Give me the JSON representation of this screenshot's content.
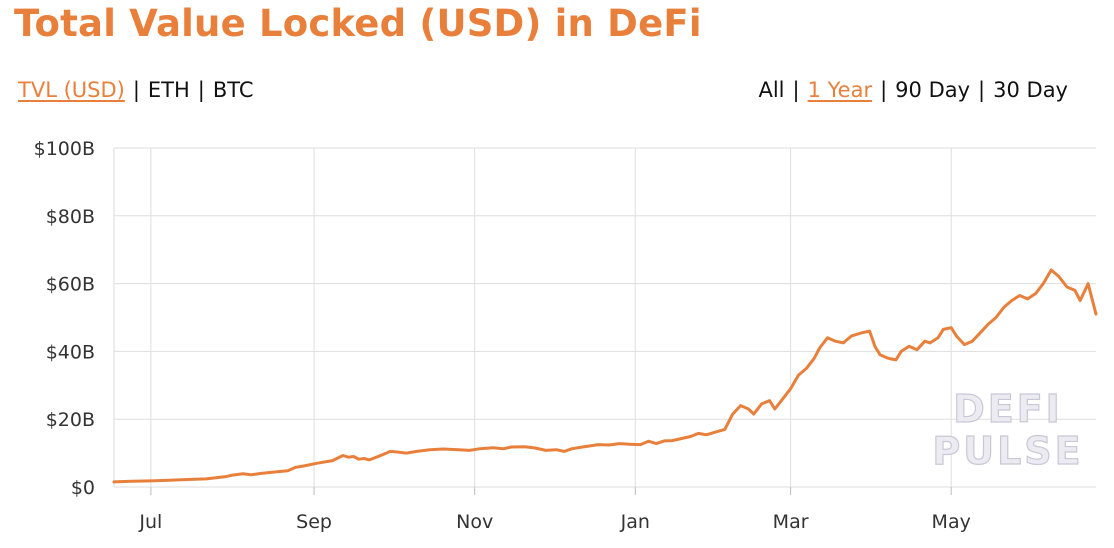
{
  "title": "Total Value Locked (USD) in DeFi",
  "metric_tabs": [
    {
      "label": "TVL (USD)",
      "active": true
    },
    {
      "label": "ETH",
      "active": false
    },
    {
      "label": "BTC",
      "active": false
    }
  ],
  "range_tabs": [
    {
      "label": "All",
      "active": false
    },
    {
      "label": "1 Year",
      "active": true
    },
    {
      "label": "90 Day",
      "active": false
    },
    {
      "label": "30 Day",
      "active": false
    }
  ],
  "separator": "|",
  "watermark": [
    "DEFI",
    "PULSE"
  ],
  "colors": {
    "accent": "#e8803c",
    "grid": "#dedede",
    "text": "#333333"
  },
  "chart_data": {
    "type": "line",
    "title": "Total Value Locked (USD) in DeFi",
    "xlabel": "",
    "ylabel": "",
    "ylim": [
      0,
      100
    ],
    "y_unit": "B USD",
    "y_ticks": [
      0,
      20,
      40,
      60,
      80,
      100
    ],
    "y_tick_labels": [
      "$0",
      "$20B",
      "$40B",
      "$60B",
      "$80B",
      "$100B"
    ],
    "x_domain": [
      "2020-06-17",
      "2021-06-25"
    ],
    "x_ticks": [
      "2020-07-01",
      "2020-09-01",
      "2020-11-01",
      "2021-01-01",
      "2021-03-01",
      "2021-05-01"
    ],
    "x_tick_labels": [
      "Jul",
      "Sep",
      "Nov",
      "Jan",
      "Mar",
      "May"
    ],
    "grid": true,
    "legend": "none",
    "series": [
      {
        "color": "#e8803c",
        "points": [
          [
            "2020-06-17",
            1.5
          ],
          [
            "2020-06-24",
            1.7
          ],
          [
            "2020-07-01",
            1.8
          ],
          [
            "2020-07-08",
            2.0
          ],
          [
            "2020-07-15",
            2.2
          ],
          [
            "2020-07-22",
            2.4
          ],
          [
            "2020-07-29",
            3.0
          ],
          [
            "2020-08-01",
            3.5
          ],
          [
            "2020-08-05",
            3.9
          ],
          [
            "2020-08-08",
            3.6
          ],
          [
            "2020-08-12",
            4.0
          ],
          [
            "2020-08-18",
            4.5
          ],
          [
            "2020-08-22",
            4.8
          ],
          [
            "2020-08-25",
            5.8
          ],
          [
            "2020-08-28",
            6.2
          ],
          [
            "2020-09-02",
            7.0
          ],
          [
            "2020-09-08",
            7.8
          ],
          [
            "2020-09-12",
            9.3
          ],
          [
            "2020-09-14",
            8.8
          ],
          [
            "2020-09-16",
            9.0
          ],
          [
            "2020-09-18",
            8.2
          ],
          [
            "2020-09-20",
            8.4
          ],
          [
            "2020-09-22",
            8.0
          ],
          [
            "2020-09-26",
            9.2
          ],
          [
            "2020-09-30",
            10.5
          ],
          [
            "2020-10-03",
            10.3
          ],
          [
            "2020-10-06",
            10.0
          ],
          [
            "2020-10-10",
            10.5
          ],
          [
            "2020-10-15",
            11.0
          ],
          [
            "2020-10-20",
            11.2
          ],
          [
            "2020-10-26",
            11.0
          ],
          [
            "2020-10-30",
            10.8
          ],
          [
            "2020-11-03",
            11.3
          ],
          [
            "2020-11-08",
            11.6
          ],
          [
            "2020-11-12",
            11.3
          ],
          [
            "2020-11-15",
            11.8
          ],
          [
            "2020-11-20",
            11.9
          ],
          [
            "2020-11-24",
            11.5
          ],
          [
            "2020-11-28",
            10.8
          ],
          [
            "2020-12-02",
            11.0
          ],
          [
            "2020-12-05",
            10.5
          ],
          [
            "2020-12-08",
            11.3
          ],
          [
            "2020-12-12",
            11.8
          ],
          [
            "2020-12-18",
            12.5
          ],
          [
            "2020-12-22",
            12.4
          ],
          [
            "2020-12-26",
            12.8
          ],
          [
            "2020-12-30",
            12.6
          ],
          [
            "2021-01-03",
            12.5
          ],
          [
            "2021-01-06",
            13.5
          ],
          [
            "2021-01-09",
            12.8
          ],
          [
            "2021-01-12",
            13.6
          ],
          [
            "2021-01-15",
            13.7
          ],
          [
            "2021-01-18",
            14.2
          ],
          [
            "2021-01-22",
            14.9
          ],
          [
            "2021-01-25",
            15.8
          ],
          [
            "2021-01-28",
            15.4
          ],
          [
            "2021-02-01",
            16.3
          ],
          [
            "2021-02-04",
            17.0
          ],
          [
            "2021-02-07",
            21.5
          ],
          [
            "2021-02-10",
            24.0
          ],
          [
            "2021-02-13",
            23.0
          ],
          [
            "2021-02-15",
            21.5
          ],
          [
            "2021-02-18",
            24.5
          ],
          [
            "2021-02-21",
            25.5
          ],
          [
            "2021-02-23",
            23.0
          ],
          [
            "2021-02-26",
            26.0
          ],
          [
            "2021-03-01",
            29.0
          ],
          [
            "2021-03-04",
            33.0
          ],
          [
            "2021-03-07",
            35.0
          ],
          [
            "2021-03-10",
            38.0
          ],
          [
            "2021-03-12",
            41.0
          ],
          [
            "2021-03-15",
            44.0
          ],
          [
            "2021-03-18",
            43.0
          ],
          [
            "2021-03-21",
            42.5
          ],
          [
            "2021-03-24",
            44.5
          ],
          [
            "2021-03-28",
            45.5
          ],
          [
            "2021-03-31",
            46.0
          ],
          [
            "2021-04-02",
            41.5
          ],
          [
            "2021-04-04",
            39.0
          ],
          [
            "2021-04-07",
            38.0
          ],
          [
            "2021-04-10",
            37.5
          ],
          [
            "2021-04-12",
            40.0
          ],
          [
            "2021-04-15",
            41.5
          ],
          [
            "2021-04-18",
            40.5
          ],
          [
            "2021-04-21",
            43.0
          ],
          [
            "2021-04-23",
            42.5
          ],
          [
            "2021-04-26",
            44.0
          ],
          [
            "2021-04-28",
            46.5
          ],
          [
            "2021-05-01",
            47.0
          ],
          [
            "2021-05-03",
            44.5
          ],
          [
            "2021-05-06",
            42.0
          ],
          [
            "2021-05-09",
            43.0
          ],
          [
            "2021-05-12",
            45.5
          ],
          [
            "2021-05-15",
            48.0
          ],
          [
            "2021-05-18",
            50.0
          ],
          [
            "2021-05-21",
            53.0
          ],
          [
            "2021-05-24",
            55.0
          ],
          [
            "2021-05-27",
            56.5
          ],
          [
            "2021-05-30",
            55.5
          ],
          [
            "2021-06-02",
            57.0
          ],
          [
            "2021-06-05",
            60.0
          ],
          [
            "2021-06-08",
            64.0
          ],
          [
            "2021-06-11",
            62.0
          ],
          [
            "2021-06-14",
            59.0
          ],
          [
            "2021-06-17",
            58.0
          ],
          [
            "2021-06-19",
            55.0
          ],
          [
            "2021-06-22",
            60.0
          ],
          [
            "2021-06-25",
            51.0
          ]
        ]
      }
    ]
  }
}
